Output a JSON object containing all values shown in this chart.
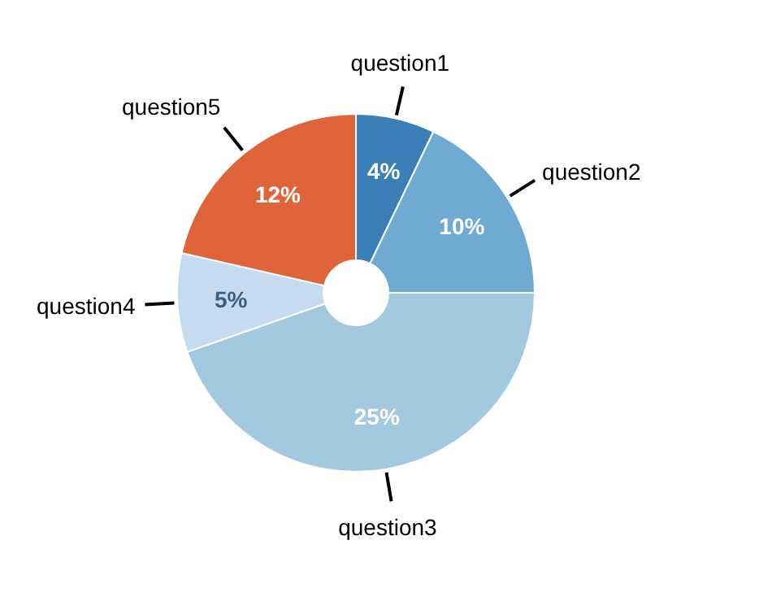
{
  "chart_data": {
    "type": "donut",
    "categories": [
      "question1",
      "question2",
      "question3",
      "question4",
      "question5"
    ],
    "values": [
      4,
      10,
      25,
      5,
      12
    ],
    "colors": [
      "#3a7fb8",
      "#6faad3",
      "#a3c9e0",
      "#c6dbef",
      "#e0643a"
    ],
    "value_labels": [
      "4%",
      "10%",
      "25%",
      "5%",
      "12%"
    ]
  }
}
